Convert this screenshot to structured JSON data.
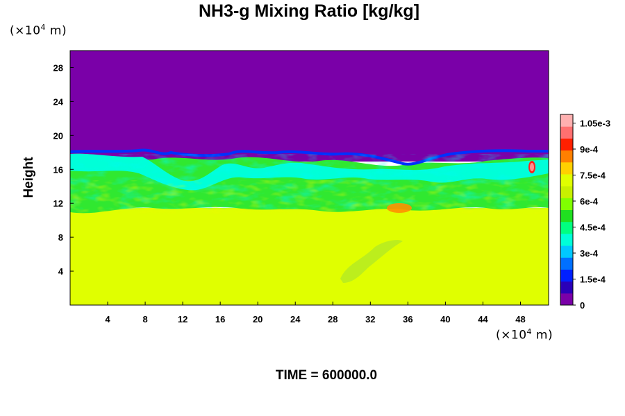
{
  "chart_data": {
    "type": "heatmap",
    "title": "NH3-g Mixing Ratio [kg/kg]",
    "ylabel": "Height",
    "xlabel": "",
    "x_unit_prefix": "(×10",
    "x_unit_exp": "4",
    "x_unit_suffix": " m)",
    "y_unit_prefix": "(×10",
    "y_unit_exp": "4",
    "y_unit_suffix": " m)",
    "xlim": [
      0,
      51
    ],
    "ylim": [
      0,
      30
    ],
    "x_ticks": [
      4,
      8,
      12,
      16,
      20,
      24,
      28,
      32,
      36,
      40,
      44,
      48
    ],
    "y_ticks": [
      4,
      8,
      12,
      16,
      20,
      24,
      28
    ],
    "colorbar": {
      "min": 0,
      "max": 0.0011,
      "tick_values": [
        0,
        0.00015,
        0.0003,
        0.00045,
        0.0006,
        0.00075,
        0.0009,
        0.00105
      ],
      "tick_labels": [
        "0",
        "1.5e-4",
        "3e-4",
        "4.5e-4",
        "6e-4",
        "7.5e-4",
        "9e-4",
        "1.05e-3"
      ],
      "colors": [
        "#7a00a8",
        "#2a00b8",
        "#0020ff",
        "#0070ff",
        "#00c8ff",
        "#00ffd8",
        "#00ff80",
        "#20e020",
        "#80ff00",
        "#c8f000",
        "#e0ff00",
        "#ffd000",
        "#ff8000",
        "#ff2000",
        "#ff7070",
        "#ffb0b0"
      ]
    },
    "field": {
      "upper_region_value": 0,
      "lower_region_value": 0.00077,
      "cloud_top_height": 17.8,
      "lower_boundary_height": 10.8
    },
    "footer": "TIME = 600000.0"
  }
}
